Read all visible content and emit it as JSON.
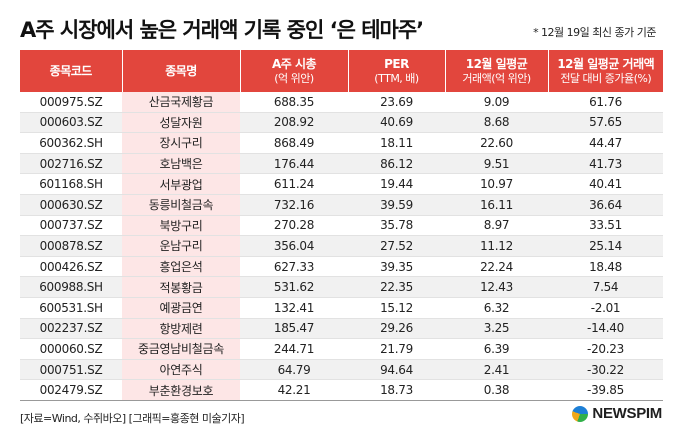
{
  "title": "A주 시장에서 높은 거래액 기록 중인 ‘은 테마주’",
  "note": "* 12월 19일 최신 종가 기준",
  "table": {
    "headers": [
      {
        "main": "종목코드",
        "sub": ""
      },
      {
        "main": "종목명",
        "sub": ""
      },
      {
        "main": "A주 시총",
        "sub": "(억 위안)"
      },
      {
        "main": "PER",
        "sub": "(TTM, 배)"
      },
      {
        "main": "12월 일평균",
        "sub": "거래액(억 위안)"
      },
      {
        "main": "12월 일평균 거래액",
        "sub": "전달 대비 증가율(%)"
      }
    ],
    "rows": [
      {
        "code": "000975.SZ",
        "name": "산금국제황금",
        "mcap": "688.35",
        "per": "23.69",
        "vol": "9.09",
        "growth": "61.76"
      },
      {
        "code": "000603.SZ",
        "name": "성달자원",
        "mcap": "208.92",
        "per": "40.69",
        "vol": "8.68",
        "growth": "57.65"
      },
      {
        "code": "600362.SH",
        "name": "장시구리",
        "mcap": "868.49",
        "per": "18.11",
        "vol": "22.60",
        "growth": "44.47"
      },
      {
        "code": "002716.SZ",
        "name": "호남백은",
        "mcap": "176.44",
        "per": "86.12",
        "vol": "9.51",
        "growth": "41.73"
      },
      {
        "code": "601168.SH",
        "name": "서부광업",
        "mcap": "611.24",
        "per": "19.44",
        "vol": "10.97",
        "growth": "40.41"
      },
      {
        "code": "000630.SZ",
        "name": "동릉비철금속",
        "mcap": "732.16",
        "per": "39.59",
        "vol": "16.11",
        "growth": "36.64"
      },
      {
        "code": "000737.SZ",
        "name": "북방구리",
        "mcap": "270.28",
        "per": "35.78",
        "vol": "8.97",
        "growth": "33.51"
      },
      {
        "code": "000878.SZ",
        "name": "운남구리",
        "mcap": "356.04",
        "per": "27.52",
        "vol": "11.12",
        "growth": "25.14"
      },
      {
        "code": "000426.SZ",
        "name": "흥업은석",
        "mcap": "627.33",
        "per": "39.35",
        "vol": "22.24",
        "growth": "18.48"
      },
      {
        "code": "600988.SH",
        "name": "적봉황금",
        "mcap": "531.62",
        "per": "22.35",
        "vol": "12.43",
        "growth": "7.54"
      },
      {
        "code": "600531.SH",
        "name": "예광금연",
        "mcap": "132.41",
        "per": "15.12",
        "vol": "6.32",
        "growth": "-2.01"
      },
      {
        "code": "002237.SZ",
        "name": "항방제련",
        "mcap": "185.47",
        "per": "29.26",
        "vol": "3.25",
        "growth": "-14.40"
      },
      {
        "code": "000060.SZ",
        "name": "중금영남비철금속",
        "mcap": "244.71",
        "per": "21.79",
        "vol": "6.39",
        "growth": "-20.23"
      },
      {
        "code": "000751.SZ",
        "name": "아연주식",
        "mcap": "64.79",
        "per": "94.64",
        "vol": "2.41",
        "growth": "-30.22"
      },
      {
        "code": "002479.SZ",
        "name": "부춘환경보호",
        "mcap": "42.21",
        "per": "18.73",
        "vol": "0.38",
        "growth": "-39.85"
      }
    ]
  },
  "source": "[자료=Wind, 수쥐바오] [그래픽=홍종현 미술기자]",
  "logo": {
    "text": "NEWSPIM",
    "icon": "newspim-logo-icon"
  }
}
